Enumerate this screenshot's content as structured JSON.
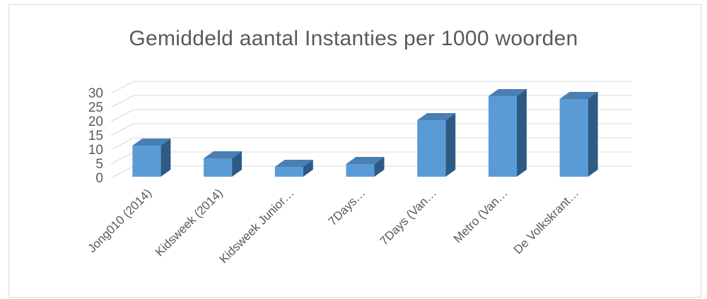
{
  "chart_data": {
    "type": "bar",
    "title": "Gemiddeld aantal Instanties per 1000 woorden",
    "categories": [
      "Jong010 (2014)",
      "Kidsweek (2014)",
      "Kidsweek Junior…",
      "7Days…",
      "7Days (Van…",
      "Metro (Van…",
      "De Volkskrant…"
    ],
    "values": [
      11,
      6.5,
      3.5,
      4.5,
      20,
      28.5,
      27.5
    ],
    "ylim": [
      0,
      30
    ],
    "yticks": [
      "0",
      "5",
      "10",
      "15",
      "20",
      "25",
      "30"
    ],
    "grid": true,
    "colors": {
      "front": "#5b9bd5",
      "side": "#2e5b86",
      "top": "#4a7fb3",
      "grid": "#d9d9d9",
      "text": "#595959"
    }
  }
}
